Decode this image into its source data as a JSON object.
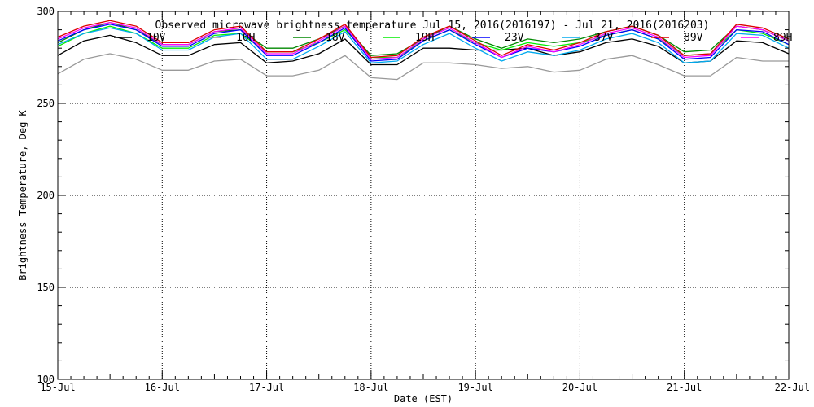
{
  "chart_data": {
    "type": "line",
    "title": "Observed microwave brightness temperature Jul 15, 2016(2016197) - Jul 21, 2016(2016203)",
    "xlabel": "Date (EST)",
    "ylabel": "Brightness Temperature, Deg K",
    "xlim": [
      0,
      7
    ],
    "ylim": [
      100,
      300
    ],
    "grid": true,
    "legend_position": "top",
    "x_ticks": [
      {
        "value": 0,
        "label": "15-Jul"
      },
      {
        "value": 1,
        "label": "16-Jul"
      },
      {
        "value": 2,
        "label": "17-Jul"
      },
      {
        "value": 3,
        "label": "18-Jul"
      },
      {
        "value": 4,
        "label": "19-Jul"
      },
      {
        "value": 5,
        "label": "20-Jul"
      },
      {
        "value": 6,
        "label": "21-Jul"
      },
      {
        "value": 7,
        "label": "22-Jul"
      }
    ],
    "y_ticks": [
      {
        "value": 100,
        "label": "100"
      },
      {
        "value": 150,
        "label": "150"
      },
      {
        "value": 200,
        "label": "200"
      },
      {
        "value": 250,
        "label": "250"
      },
      {
        "value": 300,
        "label": "300"
      }
    ],
    "x": [
      0,
      0.25,
      0.5,
      0.75,
      1.0,
      1.25,
      1.5,
      1.75,
      2.0,
      2.25,
      2.5,
      2.75,
      3.0,
      3.25,
      3.5,
      3.75,
      4.0,
      4.25,
      4.5,
      4.75,
      5.0,
      5.25,
      5.5,
      5.75,
      6.0,
      6.25,
      6.5,
      6.75,
      7.0
    ],
    "series": [
      {
        "name": "10V",
        "color": "#000000",
        "values": [
          276,
          284,
          287,
          283,
          276,
          276,
          282,
          283,
          272,
          273,
          277,
          285,
          271,
          271,
          280,
          280,
          279,
          279,
          280,
          276,
          278,
          283,
          285,
          281,
          272,
          273,
          284,
          283,
          277
        ]
      },
      {
        "name": "10H",
        "color": "#999999",
        "values": [
          266,
          274,
          277,
          274,
          268,
          268,
          273,
          274,
          265,
          265,
          268,
          276,
          264,
          263,
          272,
          272,
          271,
          269,
          270,
          267,
          268,
          274,
          276,
          271,
          265,
          265,
          275,
          273,
          273
        ]
      },
      {
        "name": "18V",
        "color": "#008800",
        "values": [
          283,
          290,
          294,
          290,
          282,
          282,
          289,
          290,
          280,
          280,
          285,
          292,
          276,
          277,
          285,
          292,
          285,
          280,
          285,
          283,
          285,
          289,
          292,
          287,
          278,
          279,
          292,
          290,
          284
        ]
      },
      {
        "name": "19H",
        "color": "#00ee00",
        "values": [
          281,
          288,
          292,
          288,
          280,
          280,
          287,
          288,
          278,
          278,
          283,
          290,
          275,
          275,
          284,
          290,
          283,
          279,
          283,
          281,
          283,
          287,
          290,
          285,
          276,
          277,
          290,
          288,
          282
        ]
      },
      {
        "name": "23V",
        "color": "#0000ff",
        "values": [
          284,
          290,
          293,
          290,
          281,
          281,
          288,
          290,
          276,
          276,
          283,
          291,
          273,
          274,
          284,
          290,
          282,
          275,
          280,
          278,
          281,
          287,
          290,
          285,
          274,
          275,
          290,
          289,
          282
        ]
      },
      {
        "name": "37V",
        "color": "#00aaee",
        "values": [
          282,
          288,
          291,
          288,
          279,
          279,
          286,
          288,
          274,
          274,
          281,
          289,
          272,
          273,
          282,
          288,
          280,
          273,
          278,
          276,
          279,
          285,
          288,
          283,
          272,
          273,
          288,
          287,
          280
        ]
      },
      {
        "name": "89V",
        "color": "#dd0000",
        "values": [
          286,
          292,
          295,
          292,
          283,
          283,
          290,
          292,
          278,
          278,
          285,
          293,
          275,
          276,
          286,
          292,
          284,
          276,
          282,
          279,
          283,
          289,
          292,
          287,
          276,
          277,
          293,
          291,
          285
        ]
      },
      {
        "name": "89H",
        "color": "#ff00ff",
        "values": [
          285,
          291,
          294,
          291,
          282,
          282,
          289,
          291,
          277,
          277,
          284,
          292,
          274,
          275,
          285,
          291,
          283,
          275,
          281,
          278,
          282,
          288,
          291,
          286,
          275,
          276,
          292,
          290,
          284
        ]
      }
    ]
  }
}
